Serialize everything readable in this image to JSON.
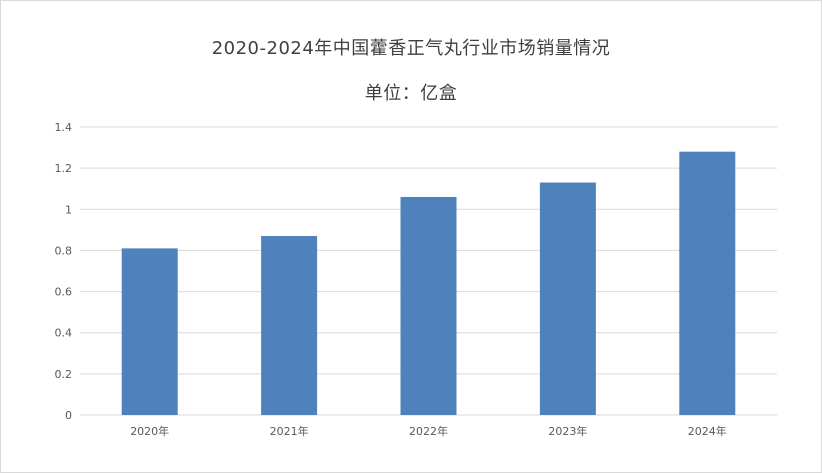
{
  "chart_data": {
    "type": "bar",
    "title": "2020-2024年中国藿香正气丸行业市场销量情况",
    "subtitle": "单位：亿盒",
    "categories": [
      "2020年",
      "2021年",
      "2022年",
      "2023年",
      "2024年"
    ],
    "values": [
      0.81,
      0.87,
      1.06,
      1.13,
      1.28
    ],
    "ylim": [
      0,
      1.4
    ],
    "yticks": [
      "0",
      "0.2",
      "0.4",
      "0.6",
      "0.8",
      "1",
      "1.2",
      "1.4"
    ],
    "xlabel": "",
    "ylabel": "",
    "grid": true,
    "bar_color": "#4f81bd",
    "grid_color": "#d9d9d9"
  }
}
